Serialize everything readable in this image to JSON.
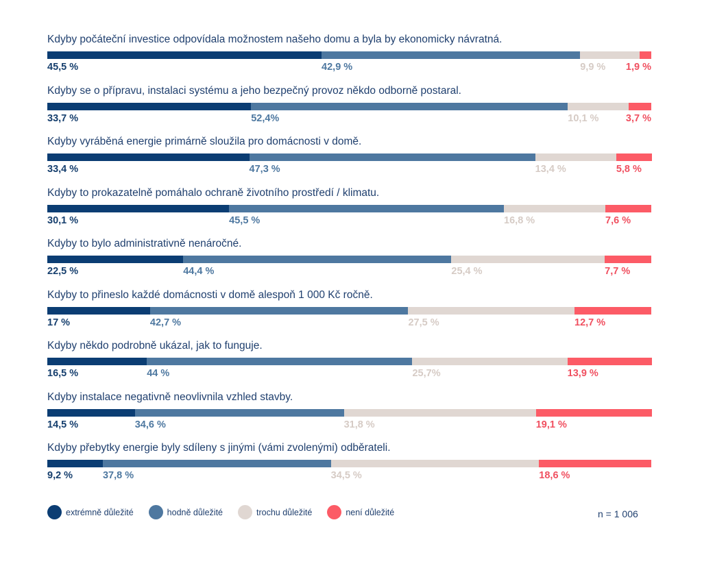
{
  "chart_data": {
    "type": "bar",
    "orientation": "horizontal-stacked-100",
    "title": "",
    "xlabel": "",
    "ylabel": "",
    "xlim": [
      0,
      100
    ],
    "grid": false,
    "legend_position": "bottom-left",
    "sample_size": "n = 1 006",
    "series": [
      {
        "name": "extrémně důležité",
        "color": "#0b3d73"
      },
      {
        "name": "hodně důležité",
        "color": "#4e78a0"
      },
      {
        "name": "trochu důležité",
        "color": "#e0d7d2"
      },
      {
        "name": "není důležité",
        "color": "#fc5b66"
      }
    ],
    "label_colors": [
      "#163f6e",
      "#4e78a0",
      "#d6cbc5",
      "#f05060"
    ],
    "categories": [
      {
        "label": "Kdyby počáteční investice odpovídala možnostem našeho domu a byla by ekonomicky návratná.",
        "values": [
          45.5,
          42.9,
          9.9,
          1.9
        ],
        "texts": [
          "45,5 %",
          "42,9 %",
          "9,9 %",
          "1,9 %"
        ]
      },
      {
        "label": "Kdyby se o přípravu, instalaci systému a jeho bezpečný provoz někdo odborně postaral.",
        "values": [
          33.7,
          52.4,
          10.1,
          3.7
        ],
        "texts": [
          "33,7 %",
          "52,4%",
          "10,1 %",
          "3,7 %"
        ]
      },
      {
        "label": "Kdyby vyráběná energie primárně sloužila pro domácnosti v domě.",
        "values": [
          33.4,
          47.3,
          13.4,
          5.8
        ],
        "texts": [
          "33,4 %",
          "47,3 %",
          "13,4 %",
          "5,8 %"
        ]
      },
      {
        "label": "Kdyby to prokazatelně pomáhalo ochraně životního prostředí / klimatu.",
        "values": [
          30.1,
          45.5,
          16.8,
          7.6
        ],
        "texts": [
          "30,1 %",
          "45,5 %",
          "16,8 %",
          "7,6 %"
        ]
      },
      {
        "label": "Kdyby to bylo administrativně nenáročné.",
        "values": [
          22.5,
          44.4,
          25.4,
          7.7
        ],
        "texts": [
          "22,5 %",
          "44,4 %",
          "25,4 %",
          "7,7 %"
        ]
      },
      {
        "label": "Kdyby to přineslo každé domácnosti v domě alespoň 1 000 Kč ročně.",
        "values": [
          17,
          42.7,
          27.5,
          12.7
        ],
        "texts": [
          "17 %",
          "42,7 %",
          "27,5 %",
          "12,7 %"
        ]
      },
      {
        "label": "Kdyby někdo podrobně ukázal, jak to funguje.",
        "values": [
          16.5,
          44,
          25.7,
          13.9
        ],
        "texts": [
          "16,5 %",
          "44 %",
          "25,7%",
          "13,9 %"
        ]
      },
      {
        "label": "Kdyby instalace negativně neovlivnila vzhled stavby.",
        "values": [
          14.5,
          34.6,
          31.8,
          19.1
        ],
        "texts": [
          "14,5 %",
          "34,6 %",
          "31,8 %",
          "19,1 %"
        ]
      },
      {
        "label": "Kdyby přebytky energie byly sdíleny s jinými (vámi zvolenými) odběrateli.",
        "values": [
          9.2,
          37.8,
          34.5,
          18.6
        ],
        "texts": [
          "9,2 %",
          "37,8 %",
          "34,5 %",
          "18,6 %"
        ]
      }
    ]
  }
}
